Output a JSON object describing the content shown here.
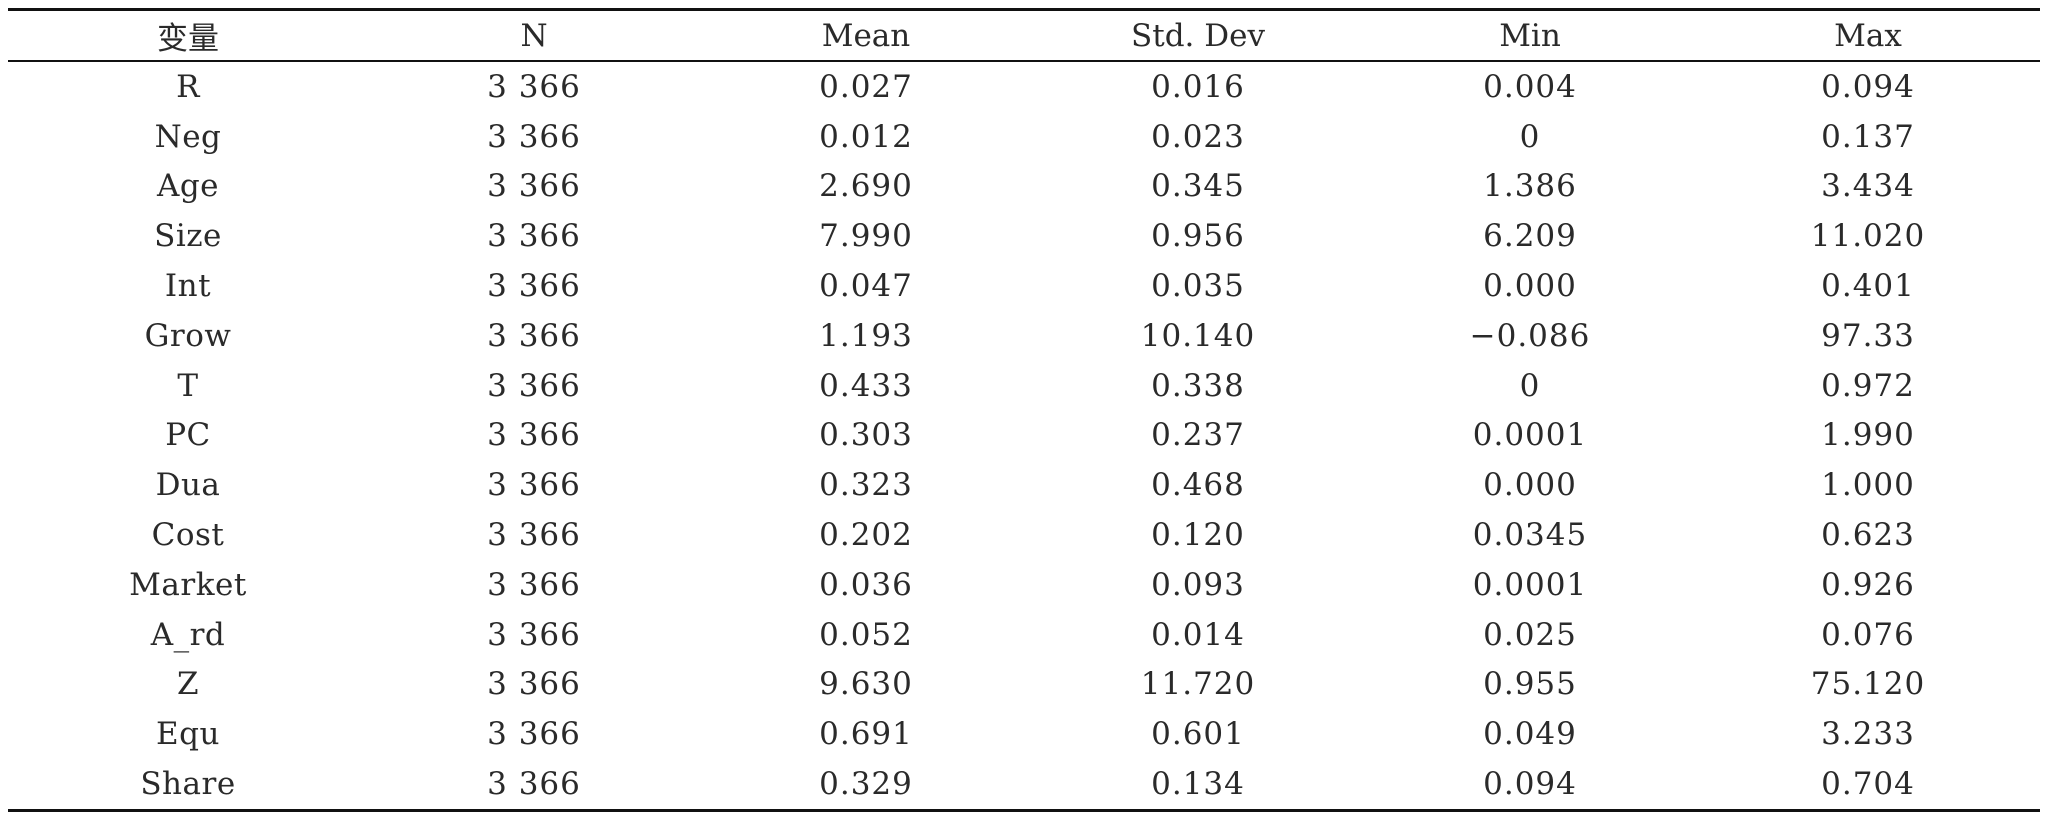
{
  "table": {
    "headers": [
      "变量",
      "N",
      "Mean",
      "Std. Dev",
      "Min",
      "Max"
    ],
    "rows": [
      [
        "R",
        "3 366",
        "0.027",
        "0.016",
        "0.004",
        "0.094"
      ],
      [
        "Neg",
        "3 366",
        "0.012",
        "0.023",
        "0",
        "0.137"
      ],
      [
        "Age",
        "3 366",
        "2.690",
        "0.345",
        "1.386",
        "3.434"
      ],
      [
        "Size",
        "3 366",
        "7.990",
        "0.956",
        "6.209",
        "11.020"
      ],
      [
        "Int",
        "3 366",
        "0.047",
        "0.035",
        "0.000",
        "0.401"
      ],
      [
        "Grow",
        "3 366",
        "1.193",
        "10.140",
        "−0.086",
        "97.33"
      ],
      [
        "T",
        "3 366",
        "0.433",
        "0.338",
        "0",
        "0.972"
      ],
      [
        "PC",
        "3 366",
        "0.303",
        "0.237",
        "0.0001",
        "1.990"
      ],
      [
        "Dua",
        "3 366",
        "0.323",
        "0.468",
        "0.000",
        "1.000"
      ],
      [
        "Cost",
        "3 366",
        "0.202",
        "0.120",
        "0.0345",
        "0.623"
      ],
      [
        "Market",
        "3 366",
        "0.036",
        "0.093",
        "0.0001",
        "0.926"
      ],
      [
        "A_rd",
        "3 366",
        "0.052",
        "0.014",
        "0.025",
        "0.076"
      ],
      [
        "Z",
        "3 366",
        "9.630",
        "11.720",
        "0.955",
        "75.120"
      ],
      [
        "Equ",
        "3 366",
        "0.691",
        "0.601",
        "0.049",
        "3.233"
      ],
      [
        "Share",
        "3 366",
        "0.329",
        "0.134",
        "0.094",
        "0.704"
      ]
    ]
  }
}
